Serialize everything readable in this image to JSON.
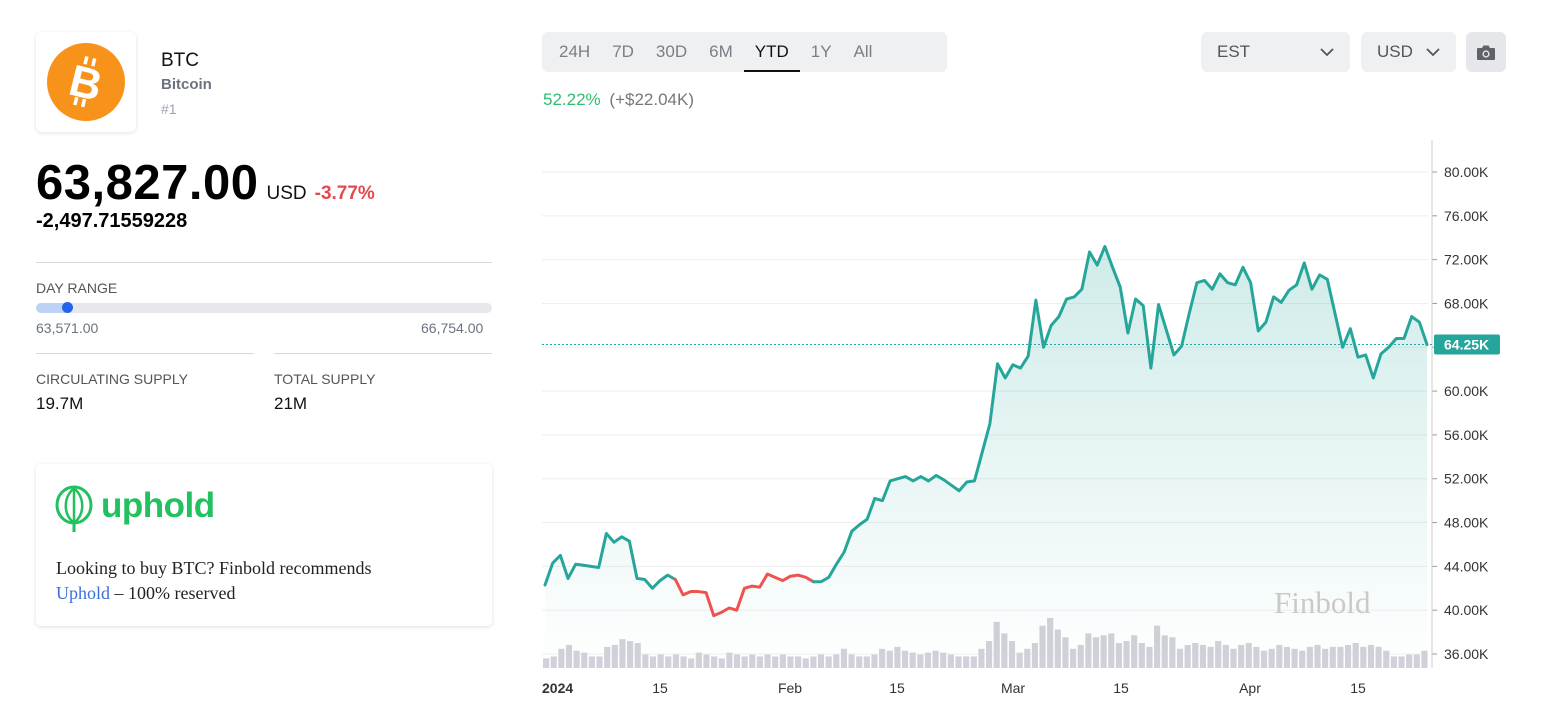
{
  "coin": {
    "symbol": "BTC",
    "name": "Bitcoin",
    "rank": "#1",
    "logo_color": "#f7931a"
  },
  "price": {
    "value": "63,827.00",
    "currency": "USD",
    "change_pct": "-3.77%",
    "change_abs": "-2,497.71559228"
  },
  "day_range": {
    "label": "DAY RANGE",
    "low": "63,571.00",
    "high": "66,754.00",
    "position": 0.07
  },
  "supply": {
    "circulating_label": "CIRCULATING SUPPLY",
    "circulating_value": "19.7M",
    "total_label": "TOTAL SUPPLY",
    "total_value": "21M"
  },
  "promo": {
    "brand": "uphold",
    "text_before": "Looking to buy BTC? Finbold recommends",
    "link_text": "Uphold",
    "text_after": " – 100% reserved",
    "brand_color": "#22c05f"
  },
  "controls": {
    "tabs": [
      "24H",
      "7D",
      "30D",
      "6M",
      "YTD",
      "1Y",
      "All"
    ],
    "active_tab": "YTD",
    "timezone": "EST",
    "currency": "USD",
    "camera_icon": "camera-icon"
  },
  "performance": {
    "pct": "52.22%",
    "abs": "(+$22.04K)"
  },
  "watermark": "Finbold",
  "chart_data": {
    "type": "area",
    "x_tick_labels": [
      "2024",
      "15",
      "Feb",
      "15",
      "Mar",
      "15",
      "Apr",
      "15"
    ],
    "y_tick_labels": [
      "36.00K",
      "40.00K",
      "44.00K",
      "48.00K",
      "52.00K",
      "56.00K",
      "60.00K",
      "64.00K",
      "68.00K",
      "72.00K",
      "76.00K",
      "80.00K"
    ],
    "ylim": [
      35000,
      81000
    ],
    "current_label": "64.25K",
    "current_value": 64250,
    "grid": true,
    "line_color": "#26a69a",
    "down_color": "#ef5350",
    "down_range": [
      17,
      35
    ],
    "price": [
      42300,
      44300,
      45000,
      42900,
      44200,
      44100,
      44000,
      43900,
      47000,
      46200,
      46700,
      46300,
      42900,
      42800,
      42000,
      42700,
      43200,
      42800,
      41400,
      41700,
      41700,
      41600,
      39500,
      39800,
      40200,
      40000,
      42000,
      42200,
      42100,
      43300,
      43000,
      42700,
      43100,
      43200,
      43000,
      42600,
      42600,
      43000,
      44200,
      45300,
      47200,
      47800,
      48300,
      50200,
      50000,
      51800,
      52000,
      52200,
      51800,
      52200,
      51800,
      52300,
      51900,
      51400,
      50900,
      51700,
      51800,
      54400,
      57000,
      62500,
      61200,
      62400,
      62100,
      63200,
      68300,
      64000,
      66000,
      66800,
      68400,
      68600,
      69300,
      72700,
      71500,
      73200,
      71300,
      69500,
      65300,
      68400,
      67800,
      62100,
      67900,
      65600,
      63300,
      64100,
      67100,
      69900,
      70100,
      69300,
      70700,
      69900,
      69700,
      71300,
      69900,
      65500,
      66300,
      68600,
      68100,
      69200,
      69700,
      71700,
      69300,
      70600,
      70200,
      67100,
      64000,
      65700,
      63100,
      63300,
      61200,
      63400,
      64000,
      64800,
      64800,
      66800,
      66300,
      64250
    ],
    "volume_units": "relative",
    "volume": [
      0.25,
      0.3,
      0.5,
      0.6,
      0.45,
      0.4,
      0.3,
      0.3,
      0.55,
      0.6,
      0.75,
      0.7,
      0.65,
      0.35,
      0.3,
      0.35,
      0.3,
      0.35,
      0.3,
      0.25,
      0.4,
      0.35,
      0.3,
      0.25,
      0.4,
      0.35,
      0.3,
      0.35,
      0.3,
      0.35,
      0.3,
      0.35,
      0.3,
      0.3,
      0.25,
      0.3,
      0.35,
      0.3,
      0.35,
      0.5,
      0.35,
      0.3,
      0.3,
      0.35,
      0.5,
      0.45,
      0.55,
      0.45,
      0.4,
      0.35,
      0.4,
      0.45,
      0.4,
      0.35,
      0.3,
      0.3,
      0.3,
      0.5,
      0.7,
      1.2,
      0.9,
      0.7,
      0.4,
      0.5,
      0.65,
      1.1,
      1.3,
      1.0,
      0.8,
      0.5,
      0.6,
      0.9,
      0.8,
      0.85,
      0.9,
      0.65,
      0.7,
      0.85,
      0.65,
      0.55,
      1.1,
      0.85,
      0.8,
      0.5,
      0.6,
      0.65,
      0.6,
      0.55,
      0.7,
      0.6,
      0.5,
      0.6,
      0.65,
      0.55,
      0.45,
      0.5,
      0.6,
      0.55,
      0.5,
      0.45,
      0.55,
      0.6,
      0.5,
      0.55,
      0.55,
      0.6,
      0.65,
      0.55,
      0.6,
      0.55,
      0.45,
      0.3,
      0.3,
      0.35,
      0.35,
      0.45
    ]
  }
}
